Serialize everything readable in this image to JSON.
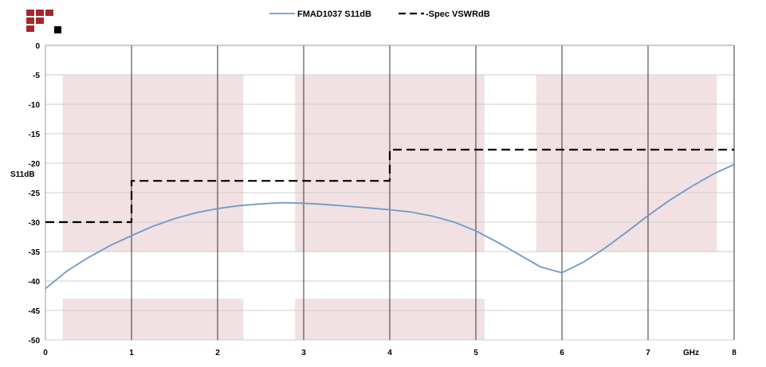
{
  "chart_data": {
    "type": "line",
    "ylabel": "S11dB",
    "xunit": "GHz",
    "xlim": [
      0,
      8
    ],
    "ylim": [
      -50,
      0
    ],
    "xticks": [
      0,
      1,
      2,
      3,
      4,
      5,
      6,
      7,
      8
    ],
    "yticks": [
      0,
      -5,
      -10,
      -15,
      -20,
      -25,
      -30,
      -35,
      -40,
      -45,
      -50
    ],
    "grid": {
      "vertical": true,
      "horizontal": true
    },
    "legend_position": "top-center",
    "logo": "red-black-squares-logo",
    "bands": {
      "upper": {
        "y_top": -5,
        "y_bottom": -35,
        "x_ranges": [
          [
            0.2,
            2.3
          ],
          [
            2.9,
            5.1
          ],
          [
            5.7,
            7.8
          ]
        ]
      },
      "lower": {
        "y_top": -43,
        "y_bottom": -50,
        "x_ranges": [
          [
            0.2,
            2.3
          ],
          [
            2.9,
            5.1
          ]
        ]
      },
      "color": "#f1e1e2"
    },
    "series": [
      {
        "name": "FMAD1037 S11dB",
        "color": "#6f99c9",
        "style": "solid",
        "x": [
          0,
          0.25,
          0.5,
          0.75,
          1.0,
          1.25,
          1.5,
          1.75,
          2.0,
          2.25,
          2.5,
          2.75,
          3.0,
          3.25,
          3.5,
          3.75,
          4.0,
          4.25,
          4.5,
          4.75,
          5.0,
          5.25,
          5.5,
          5.75,
          6.0,
          6.25,
          6.5,
          6.75,
          7.0,
          7.25,
          7.5,
          7.75,
          8.0
        ],
        "y": [
          -41.3,
          -38.3,
          -36.0,
          -34.0,
          -32.3,
          -30.7,
          -29.4,
          -28.4,
          -27.7,
          -27.2,
          -26.9,
          -26.7,
          -26.8,
          -27.0,
          -27.3,
          -27.6,
          -27.9,
          -28.3,
          -29.0,
          -30.0,
          -31.5,
          -33.4,
          -35.5,
          -37.6,
          -38.6,
          -36.8,
          -34.4,
          -31.7,
          -28.9,
          -26.3,
          -24.0,
          -21.9,
          -20.2
        ]
      },
      {
        "name": "-Spec VSWRdB",
        "color": "#000000",
        "style": "dashed",
        "x": [
          0,
          1,
          1,
          4,
          4,
          8
        ],
        "y": [
          -30,
          -30,
          -23,
          -23,
          -17.7,
          -17.7
        ]
      }
    ]
  }
}
